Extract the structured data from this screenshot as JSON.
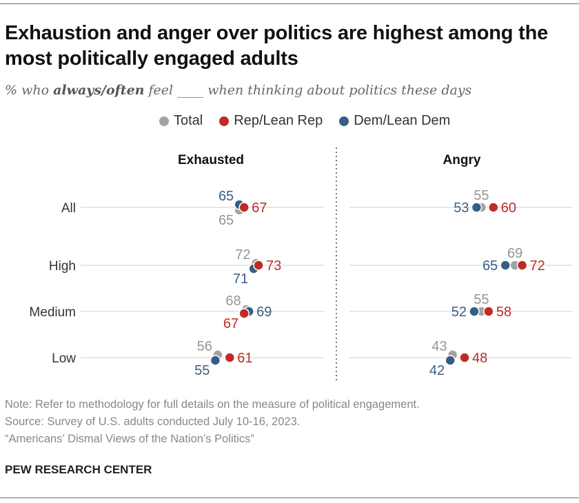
{
  "title": "Exhaustion and anger over politics are highest among the most politically engaged adults",
  "subtitle": {
    "pre": "% who ",
    "bold": "always/often",
    "post": " feel ____ when thinking about politics these days"
  },
  "colors": {
    "total": "#a3a3a3",
    "rep": "#bf2b27",
    "dem": "#365e84"
  },
  "chart_data": {
    "type": "dot",
    "legend": [
      "Total",
      "Rep/Lean Rep",
      "Dem/Lean Dem"
    ],
    "legend_placement": "top",
    "categories": [
      "All",
      "High",
      "Medium",
      "Low"
    ],
    "panels": [
      {
        "title": "Exhausted",
        "series": [
          {
            "name": "Total",
            "values": [
              65,
              72,
              68,
              56
            ]
          },
          {
            "name": "Rep/Lean Rep",
            "values": [
              67,
              73,
              67,
              61
            ]
          },
          {
            "name": "Dem/Lean Dem",
            "values": [
              65,
              71,
              69,
              55
            ]
          }
        ]
      },
      {
        "title": "Angry",
        "series": [
          {
            "name": "Total",
            "values": [
              55,
              69,
              55,
              43
            ]
          },
          {
            "name": "Rep/Lean Rep",
            "values": [
              60,
              72,
              58,
              48
            ]
          },
          {
            "name": "Dem/Lean Dem",
            "values": [
              53,
              65,
              52,
              42
            ]
          }
        ]
      }
    ]
  },
  "notes": {
    "note": "Note: Refer to methodology for full details on the measure of political engagement.",
    "source": "Source: Survey of U.S. adults conducted July 10-16, 2023.",
    "report": "“Americans’ Dismal Views of the Nation’s Politics”"
  },
  "brand": "PEW RESEARCH CENTER"
}
